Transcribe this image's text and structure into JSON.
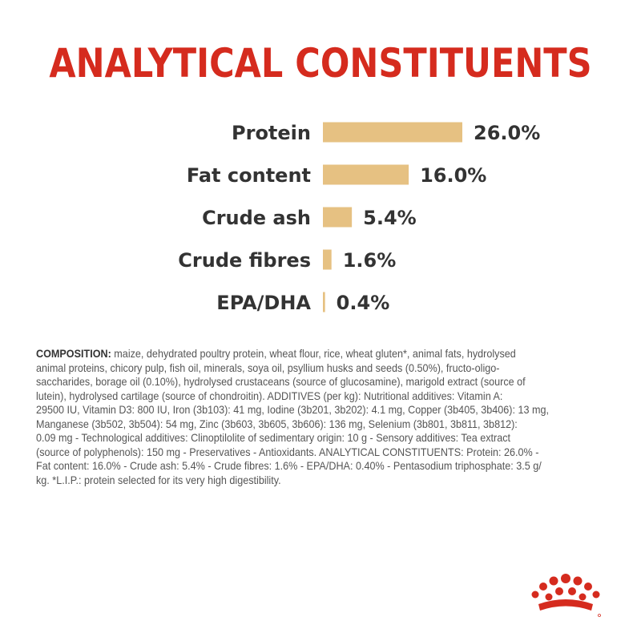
{
  "title": "ANALYTICAL CONSTITUENTS",
  "colors": {
    "title": "#d52b1e",
    "bar": "#e6c182",
    "text": "#333333",
    "logo": "#d52b1e"
  },
  "chart_data": {
    "type": "bar",
    "orientation": "horizontal",
    "categories": [
      "Protein",
      "Fat content",
      "Crude ash",
      "Crude fibres",
      "EPA/DHA"
    ],
    "values": [
      26.0,
      16.0,
      5.4,
      1.6,
      0.4
    ],
    "value_labels": [
      "26.0%",
      "16.0%",
      "5.4%",
      "1.6%",
      "0.4%"
    ],
    "xlim": [
      0,
      26
    ],
    "grid": false
  },
  "composition": {
    "label": "COMPOSITION:",
    "lines": [
      " maize, dehydrated poultry protein, wheat flour, rice, wheat gluten*, animal fats, hydrolysed",
      "animal proteins, chicory pulp, fish oil, minerals, soya oil, psyllium husks and seeds (0.50%), fructo-oligo-",
      "saccharides, borage oil (0.10%), hydrolysed crustaceans (source of glucosamine), marigold extract (source of",
      "lutein), hydrolysed cartilage (source of chondroitin). ADDITIVES (per kg): Nutritional additives: Vitamin A:",
      "29500 IU, Vitamin D3: 800 IU, Iron (3b103): 41 mg, Iodine (3b201, 3b202): 4.1 mg, Copper (3b405, 3b406): 13 mg,",
      "Manganese (3b502, 3b504): 54 mg, Zinc (3b603, 3b605, 3b606): 136 mg, Selenium (3b801, 3b811, 3b812):",
      "0.09 mg - Technological additives: Clinoptilolite of sedimentary origin: 10 g - Sensory additives: Tea extract",
      "(source of polyphenols): 150 mg - Preservatives - Antioxidants. ANALYTICAL CONSTITUENTS: Protein: 26.0% -",
      "Fat content: 16.0% - Crude ash: 5.4% - Crude fibres: 1.6% - EPA/DHA: 0.40% - Pentasodium triphosphate: 3.5 g/",
      "kg. *L.I.P.: protein selected for its very high digestibility."
    ]
  },
  "logo": {
    "icon": "crown-icon"
  }
}
